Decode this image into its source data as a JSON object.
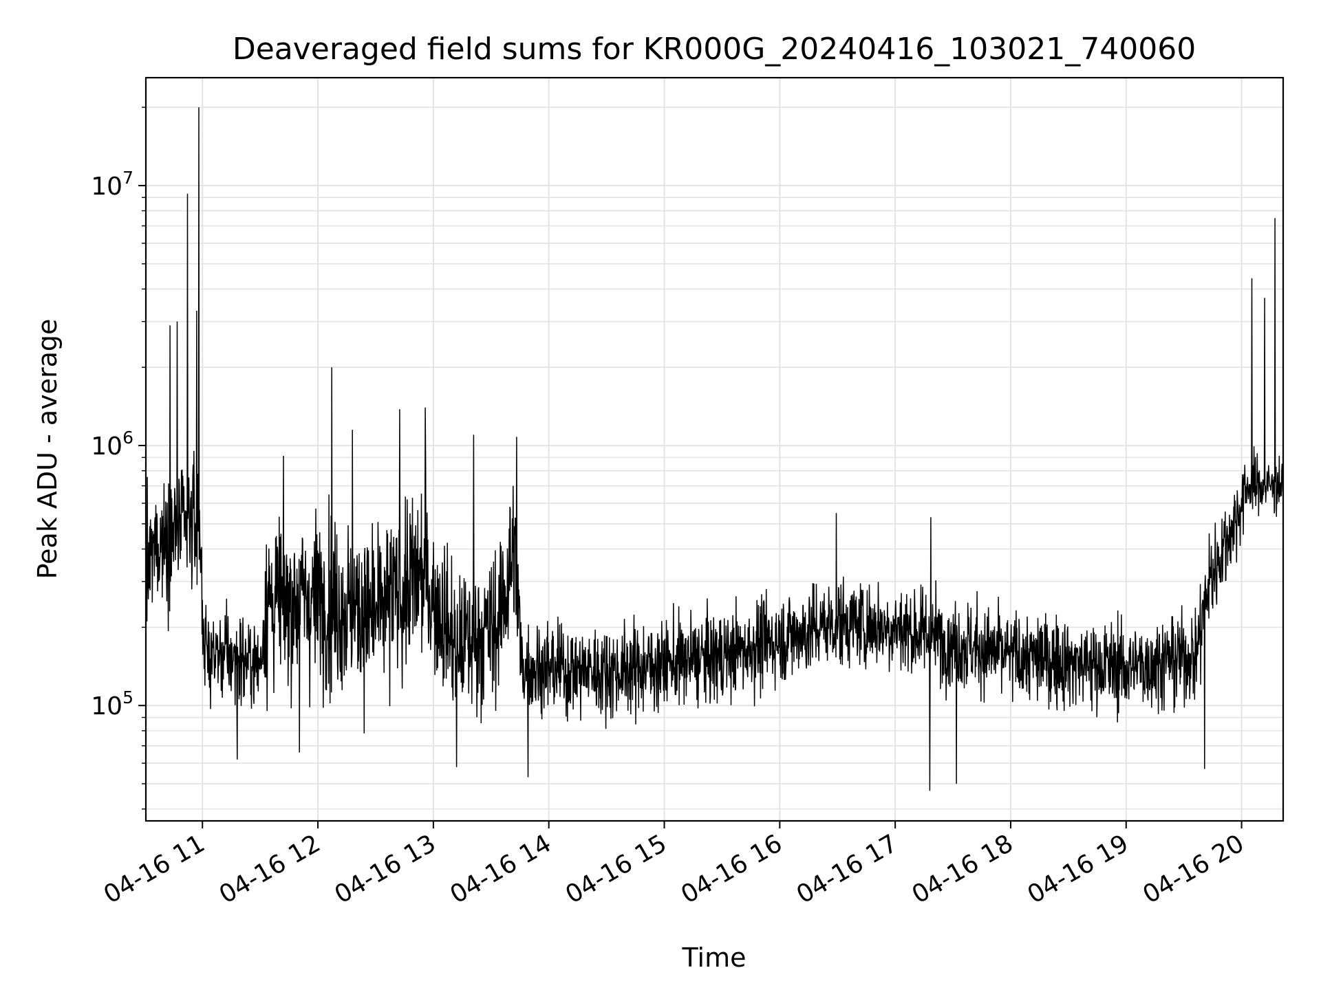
{
  "chart_data": {
    "type": "line",
    "title": "Deaveraged field sums for KR000G_20240416_103021_740060",
    "xlabel": "Time",
    "ylabel": "Peak ADU - average",
    "yscale": "log",
    "ylim": [
      36000,
      26000000
    ],
    "xlim_hours": [
      10.51,
      20.36
    ],
    "grid": true,
    "legend": "none",
    "line_color": "#000000",
    "x_ticks": [
      {
        "hour": 11,
        "label": "04-16 11"
      },
      {
        "hour": 12,
        "label": "04-16 12"
      },
      {
        "hour": 13,
        "label": "04-16 13"
      },
      {
        "hour": 14,
        "label": "04-16 14"
      },
      {
        "hour": 15,
        "label": "04-16 15"
      },
      {
        "hour": 16,
        "label": "04-16 16"
      },
      {
        "hour": 17,
        "label": "04-16 17"
      },
      {
        "hour": 18,
        "label": "04-16 18"
      },
      {
        "hour": 19,
        "label": "04-16 19"
      },
      {
        "hour": 20,
        "label": "04-16 20"
      }
    ],
    "y_ticks": [
      {
        "value": 100000,
        "base": "10",
        "exp": "5"
      },
      {
        "value": 1000000,
        "base": "10",
        "exp": "6"
      },
      {
        "value": 10000000,
        "base": "10",
        "exp": "7"
      }
    ],
    "series": [
      {
        "name": "Peak ADU - average",
        "baseline_envelope": [
          {
            "t": 10.51,
            "median": 300000,
            "spread": 0.35
          },
          {
            "t": 10.6,
            "median": 420000,
            "spread": 0.3
          },
          {
            "t": 10.97,
            "median": 520000,
            "spread": 0.3
          },
          {
            "t": 11.02,
            "median": 160000,
            "spread": 0.22
          },
          {
            "t": 11.5,
            "median": 145000,
            "spread": 0.22
          },
          {
            "t": 11.55,
            "median": 250000,
            "spread": 0.4
          },
          {
            "t": 12.0,
            "median": 260000,
            "spread": 0.42
          },
          {
            "t": 12.5,
            "median": 220000,
            "spread": 0.42
          },
          {
            "t": 12.9,
            "median": 320000,
            "spread": 0.42
          },
          {
            "t": 13.2,
            "median": 170000,
            "spread": 0.35
          },
          {
            "t": 13.55,
            "median": 200000,
            "spread": 0.38
          },
          {
            "t": 13.7,
            "median": 400000,
            "spread": 0.4
          },
          {
            "t": 13.77,
            "median": 140000,
            "spread": 0.22
          },
          {
            "t": 14.5,
            "median": 135000,
            "spread": 0.22
          },
          {
            "t": 15.5,
            "median": 155000,
            "spread": 0.22
          },
          {
            "t": 16.5,
            "median": 210000,
            "spread": 0.22
          },
          {
            "t": 17.0,
            "median": 200000,
            "spread": 0.22
          },
          {
            "t": 18.0,
            "median": 155000,
            "spread": 0.22
          },
          {
            "t": 19.0,
            "median": 140000,
            "spread": 0.22
          },
          {
            "t": 19.6,
            "median": 155000,
            "spread": 0.22
          },
          {
            "t": 19.72,
            "median": 300000,
            "spread": 0.25
          },
          {
            "t": 19.95,
            "median": 520000,
            "spread": 0.2
          },
          {
            "t": 20.05,
            "median": 700000,
            "spread": 0.15
          },
          {
            "t": 20.36,
            "median": 700000,
            "spread": 0.12
          }
        ],
        "spikes": [
          {
            "t": 10.72,
            "value": 2900000
          },
          {
            "t": 10.78,
            "value": 3000000
          },
          {
            "t": 10.87,
            "value": 9300000
          },
          {
            "t": 10.95,
            "value": 3300000
          },
          {
            "t": 10.97,
            "value": 20000000
          },
          {
            "t": 11.3,
            "value": 62000
          },
          {
            "t": 11.84,
            "value": 66000
          },
          {
            "t": 12.12,
            "value": 2000000
          },
          {
            "t": 12.3,
            "value": 1150000
          },
          {
            "t": 12.71,
            "value": 1380000
          },
          {
            "t": 12.93,
            "value": 1400000
          },
          {
            "t": 13.2,
            "value": 58000
          },
          {
            "t": 13.35,
            "value": 1100000
          },
          {
            "t": 13.72,
            "value": 1080000
          },
          {
            "t": 13.82,
            "value": 53000
          },
          {
            "t": 16.49,
            "value": 550000
          },
          {
            "t": 17.3,
            "value": 47000
          },
          {
            "t": 17.31,
            "value": 530000
          },
          {
            "t": 17.53,
            "value": 50000
          },
          {
            "t": 19.68,
            "value": 57000
          },
          {
            "t": 20.09,
            "value": 4400000
          },
          {
            "t": 20.2,
            "value": 3700000
          },
          {
            "t": 20.29,
            "value": 7500000
          }
        ]
      }
    ]
  }
}
